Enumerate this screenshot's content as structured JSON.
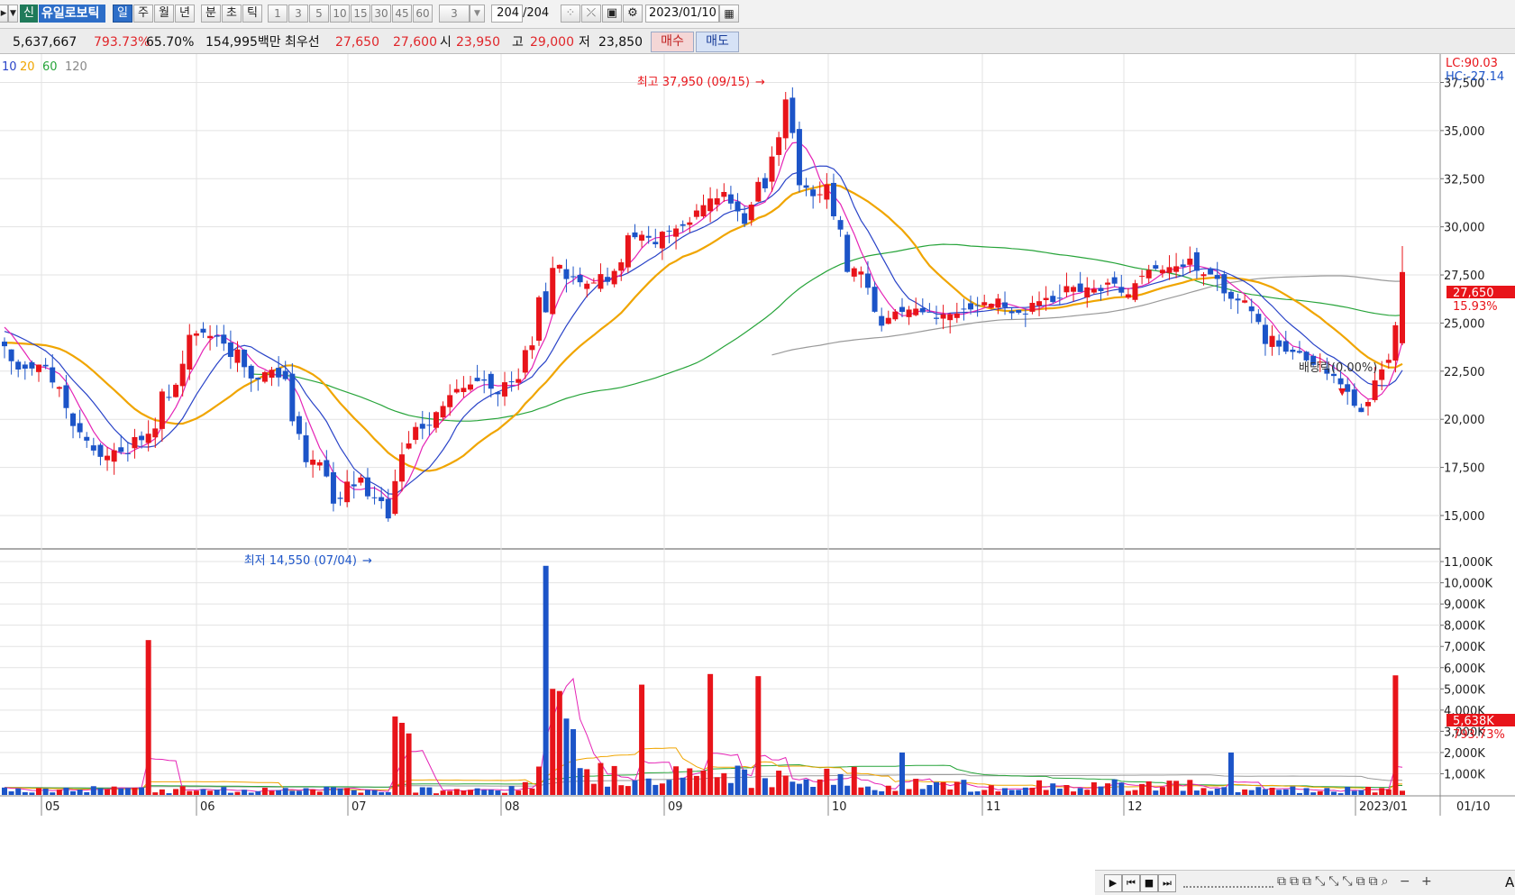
{
  "toolbar": {
    "new_badge": "신",
    "stock_name": "유일로보틱",
    "period_buttons": [
      "일",
      "주",
      "월",
      "년",
      "분",
      "초",
      "틱"
    ],
    "minute_buttons": [
      "1",
      "3",
      "5",
      "10",
      "15",
      "30",
      "45",
      "60"
    ],
    "count_value": "3",
    "range_value": "204",
    "range_total": "/204",
    "date_value": "2023/01/10"
  },
  "quote": {
    "volume": "5,637,667",
    "volume_ratio": "793.73%",
    "turnover": "65.70%",
    "amount": "154,995백만",
    "priority_label": "최우선",
    "ask": "27,650",
    "bid": "27,600",
    "open_label": "시",
    "open": "23,950",
    "high_label": "고",
    "high": "29,000",
    "low_label": "저",
    "low": "23,850",
    "buy_label": "매수",
    "sell_label": "매도"
  },
  "legend": {
    "ma5": "10",
    "ma20": "20",
    "ma60": "60",
    "ma120": "120"
  },
  "colors": {
    "up": "#e8141a",
    "down": "#1c54c8",
    "ma5": "#e524b6",
    "ma10": "#2a44c8",
    "ma20": "#f0a500",
    "ma60": "#27a43a",
    "ma120": "#9a9a9a"
  },
  "chart_data": {
    "type": "candlestick",
    "y_axis_labels": [
      "37,500",
      "35,000",
      "32,500",
      "30,000",
      "27,500",
      "25,000",
      "22,500",
      "20,000",
      "17,500",
      "15,000"
    ],
    "volume_axis_labels": [
      "11,000K",
      "10,000K",
      "9,000K",
      "8,000K",
      "7,000K",
      "6,000K",
      "5,000K",
      "4,000K",
      "3,000K",
      "2,000K",
      "1,000K"
    ],
    "x_labels": [
      "05",
      "06",
      "07",
      "08",
      "09",
      "10",
      "11",
      "12",
      "2023/01"
    ],
    "x_label_right": "01/10",
    "price_ylim": [
      13500,
      38600
    ],
    "volume_ylim": [
      0,
      11300
    ],
    "right_top_labels": [
      "LC:90.03",
      "HC:-27.14"
    ],
    "current_price": "27,650",
    "current_change": "15.93%",
    "current_volume": "5,638K",
    "current_volume_ratio": "793.73%",
    "annotations": {
      "high": "최고 37,950 (09/15)",
      "low": "최저 14,550 (07/04)",
      "dividend": "배당락(0.00%)"
    },
    "anchors": [
      [
        0,
        23500
      ],
      [
        3,
        22500
      ],
      [
        6,
        22800
      ],
      [
        10,
        19500
      ],
      [
        15,
        18200
      ],
      [
        20,
        18800
      ],
      [
        23,
        20500
      ],
      [
        27,
        24500
      ],
      [
        30,
        24300
      ],
      [
        34,
        23300
      ],
      [
        37,
        22200
      ],
      [
        40,
        22700
      ],
      [
        44,
        18500
      ],
      [
        48,
        16000
      ],
      [
        52,
        16800
      ],
      [
        56,
        15500
      ],
      [
        60,
        19500
      ],
      [
        64,
        21000
      ],
      [
        68,
        22000
      ],
      [
        72,
        21500
      ],
      [
        76,
        22200
      ],
      [
        80,
        28000
      ],
      [
        84,
        27000
      ],
      [
        88,
        27500
      ],
      [
        92,
        29500
      ],
      [
        96,
        29200
      ],
      [
        100,
        30500
      ],
      [
        104,
        31500
      ],
      [
        108,
        30000
      ],
      [
        112,
        33500
      ],
      [
        114,
        36500
      ],
      [
        116,
        32000
      ],
      [
        120,
        31500
      ],
      [
        124,
        27500
      ],
      [
        128,
        24800
      ],
      [
        132,
        25800
      ],
      [
        136,
        25300
      ],
      [
        140,
        25700
      ],
      [
        144,
        26200
      ],
      [
        148,
        25600
      ],
      [
        152,
        26200
      ],
      [
        156,
        26700
      ],
      [
        160,
        26900
      ],
      [
        164,
        26800
      ],
      [
        168,
        27700
      ],
      [
        172,
        28200
      ],
      [
        176,
        27300
      ],
      [
        180,
        26400
      ],
      [
        184,
        24300
      ],
      [
        188,
        23400
      ],
      [
        192,
        22800
      ],
      [
        195,
        21700
      ],
      [
        198,
        20300
      ],
      [
        201,
        22300
      ],
      [
        203,
        23900
      ],
      [
        204,
        27650
      ]
    ],
    "volume_spikes": [
      [
        21,
        7300
      ],
      [
        79,
        10800
      ],
      [
        80,
        5000
      ],
      [
        93,
        5200
      ],
      [
        103,
        5700
      ],
      [
        110,
        5600
      ],
      [
        131,
        2000
      ],
      [
        179,
        2000
      ],
      [
        203,
        5638
      ]
    ]
  }
}
